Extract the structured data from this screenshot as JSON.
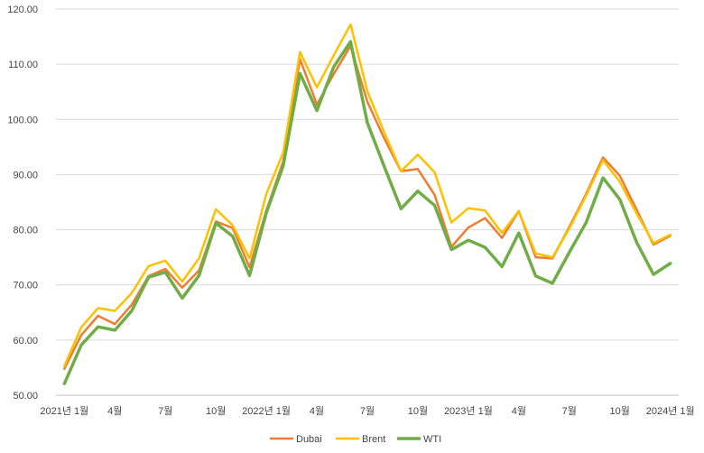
{
  "chart_data": {
    "type": "line",
    "x": [
      "2021-01",
      "2021-02",
      "2021-03",
      "2021-04",
      "2021-05",
      "2021-06",
      "2021-07",
      "2021-08",
      "2021-09",
      "2021-10",
      "2021-11",
      "2021-12",
      "2022-01",
      "2022-02",
      "2022-03",
      "2022-04",
      "2022-05",
      "2022-06",
      "2022-07",
      "2022-08",
      "2022-09",
      "2022-10",
      "2022-11",
      "2022-12",
      "2023-01",
      "2023-02",
      "2023-03",
      "2023-04",
      "2023-05",
      "2023-06",
      "2023-07",
      "2023-08",
      "2023-09",
      "2023-10",
      "2023-11",
      "2023-12",
      "2024-01"
    ],
    "xtick_labels": [
      {
        "index": 0,
        "label": "2021년 1월"
      },
      {
        "index": 3,
        "label": "4월"
      },
      {
        "index": 6,
        "label": "7월"
      },
      {
        "index": 9,
        "label": "10월"
      },
      {
        "index": 12,
        "label": "2022년 1월"
      },
      {
        "index": 15,
        "label": "4월"
      },
      {
        "index": 18,
        "label": "7월"
      },
      {
        "index": 21,
        "label": "10월"
      },
      {
        "index": 24,
        "label": "2023년 1월"
      },
      {
        "index": 27,
        "label": "4월"
      },
      {
        "index": 30,
        "label": "7월"
      },
      {
        "index": 33,
        "label": "10월"
      },
      {
        "index": 36,
        "label": "2024년 1월"
      }
    ],
    "ylim": [
      50,
      120
    ],
    "yticks": [
      "50.00",
      "60.00",
      "70.00",
      "80.00",
      "90.00",
      "100.00",
      "110.00",
      "120.00"
    ],
    "grid": true,
    "legend_position": "bottom",
    "series": [
      {
        "name": "Dubai",
        "color": "#ed7d31",
        "values": [
          54.8,
          60.9,
          64.4,
          62.9,
          66.4,
          71.6,
          72.9,
          69.5,
          72.6,
          81.5,
          80.3,
          73.2,
          83.5,
          92.4,
          110.9,
          102.7,
          108.2,
          113.3,
          103.2,
          96.6,
          90.6,
          91.0,
          86.3,
          76.9,
          80.4,
          82.1,
          78.5,
          83.4,
          75.0,
          74.8,
          80.5,
          86.5,
          93.1,
          89.8,
          83.6,
          77.3,
          78.9
        ]
      },
      {
        "name": "Brent",
        "color": "#ffc000",
        "values": [
          55.3,
          62.3,
          65.8,
          65.3,
          68.5,
          73.4,
          74.4,
          70.6,
          74.8,
          83.7,
          80.8,
          74.8,
          86.5,
          94.0,
          112.2,
          105.8,
          111.6,
          117.2,
          105.1,
          97.7,
          90.6,
          93.6,
          90.4,
          81.3,
          83.9,
          83.5,
          79.4,
          83.4,
          75.7,
          75.0,
          80.2,
          86.2,
          92.6,
          88.7,
          82.9,
          77.6,
          79.1
        ]
      },
      {
        "name": "WTI",
        "color": "#70ad47",
        "values": [
          52.1,
          59.1,
          62.4,
          61.8,
          65.3,
          71.4,
          72.3,
          67.6,
          71.7,
          81.2,
          78.8,
          71.7,
          83.1,
          91.6,
          108.3,
          101.6,
          109.5,
          114.1,
          99.4,
          91.5,
          83.8,
          87.0,
          84.4,
          76.4,
          78.1,
          76.8,
          73.3,
          79.4,
          71.6,
          70.3,
          75.9,
          81.3,
          89.4,
          85.5,
          77.7,
          71.9,
          73.9
        ]
      }
    ]
  }
}
